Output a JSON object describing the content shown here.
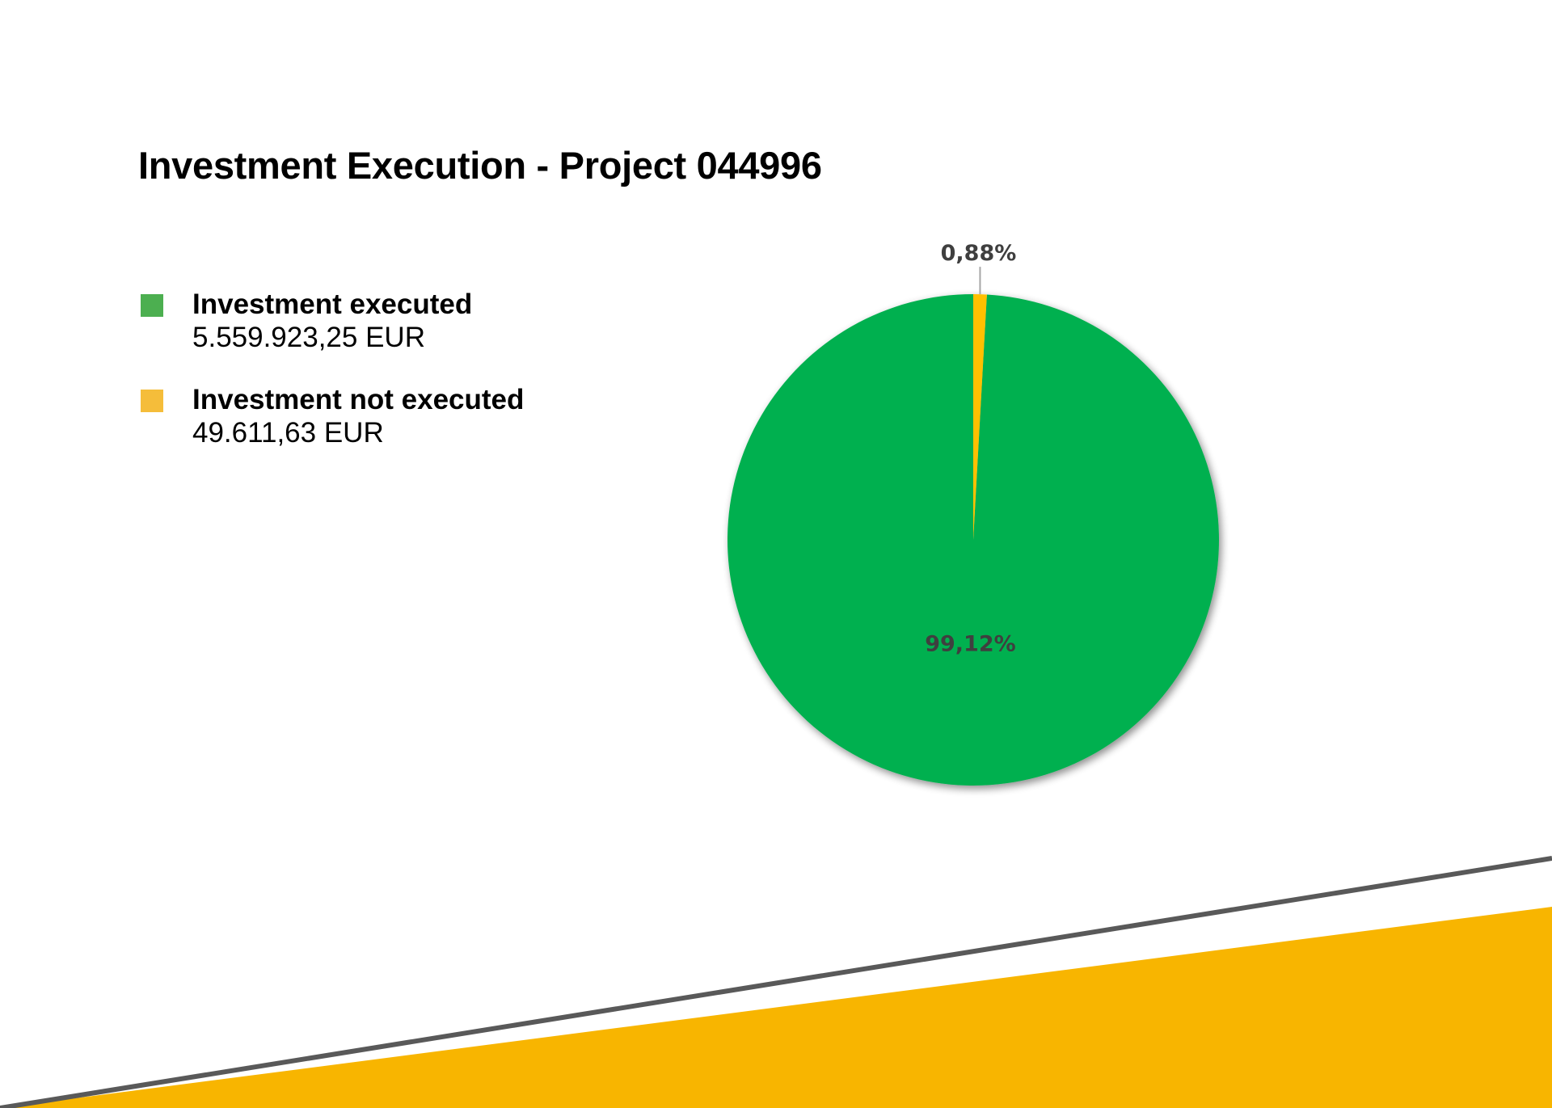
{
  "chart_data": {
    "type": "pie",
    "title": "Investment Execution - Project 044996",
    "start_angle_deg": 0,
    "direction": "counterclockwise",
    "series": [
      {
        "name": "Investment executed",
        "amount_label": "5.559.923,25 EUR",
        "value": 5559923.25,
        "percent": 99.12,
        "percent_label": "99,12%",
        "color": "#00B050",
        "legend_color": "#4CAF50"
      },
      {
        "name": "Investment not executed",
        "amount_label": "49.611,63 EUR",
        "value": 49611.63,
        "percent": 0.88,
        "percent_label": "0,88%",
        "color": "#FFC000",
        "legend_color": "#F5BD3A"
      }
    ],
    "legend_position": "left"
  },
  "colors": {
    "label_text": "#3F3F3F",
    "leader_line": "#A6A6A6",
    "footer_band": "#F8B500",
    "footer_line": "#595959"
  }
}
